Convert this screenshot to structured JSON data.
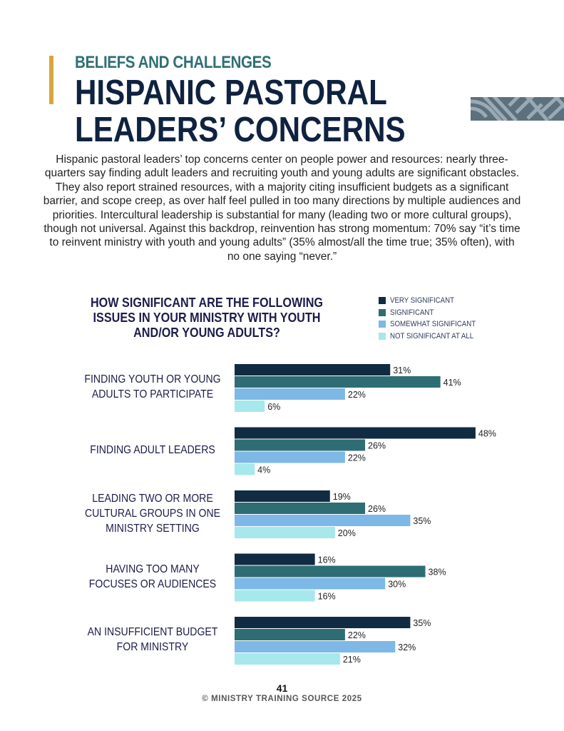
{
  "header": {
    "eyebrow": "BELIEFS AND CHALLENGES",
    "title_line1": "HISPANIC PASTORAL",
    "title_line2": "LEADERS’ CONCERNS",
    "accent_color": "#d9a53c"
  },
  "intro": "Hispanic pastoral leaders’ top concerns center on people power and resources: nearly three-quarters say finding adult leaders and recruiting youth and young adults are significant obstacles. They also report strained resources, with a majority citing insufficient budgets as a significant barrier, and scope creep, as over half feel pulled in too many directions by multiple audiences and priorities. Intercultural leadership is substantial for many (leading two or more cultural groups), though not universal. Against this backdrop, reinvention has strong momentum: 70% say “it’s time to reinvent ministry with youth and young adults” (35% almost/all the time true; 35% often), with no one saying “never.”",
  "chart_data": {
    "type": "bar",
    "orientation": "horizontal",
    "title": "HOW SIGNIFICANT ARE THE FOLLOWING ISSUES IN YOUR MINISTRY WITH YOUTH AND/OR YOUNG ADULTS?",
    "xlabel": "",
    "ylabel": "",
    "unit": "%",
    "xlim": [
      0,
      50
    ],
    "grid": false,
    "legend_position": "top-right",
    "categories": [
      [
        "FINDING YOUTH OR YOUNG",
        "ADULTS TO PARTICIPATE"
      ],
      [
        "FINDING ADULT LEADERS"
      ],
      [
        "LEADING TWO OR MORE",
        "CULTURAL GROUPS IN ONE",
        "MINISTRY SETTING"
      ],
      [
        "HAVING TOO MANY",
        "FOCUSES OR AUDIENCES"
      ],
      [
        "AN INSUFFICIENT BUDGET",
        "FOR MINISTRY"
      ]
    ],
    "series": [
      {
        "name": "VERY SIGNIFICANT",
        "color": "#112c42",
        "values": [
          31,
          48,
          19,
          16,
          35
        ]
      },
      {
        "name": "SIGNIFICANT",
        "color": "#2f6d74",
        "values": [
          41,
          26,
          26,
          38,
          22
        ]
      },
      {
        "name": "SOMEWHAT SIGNIFICANT",
        "color": "#7db8e6",
        "values": [
          22,
          22,
          35,
          30,
          32
        ]
      },
      {
        "name": "NOT SIGNIFICANT AT ALL",
        "color": "#a6e8ec",
        "values": [
          6,
          4,
          20,
          16,
          21
        ]
      }
    ]
  },
  "footer": {
    "page_number": "41",
    "copyright": "© MINISTRY TRAINING SOURCE 2025"
  }
}
